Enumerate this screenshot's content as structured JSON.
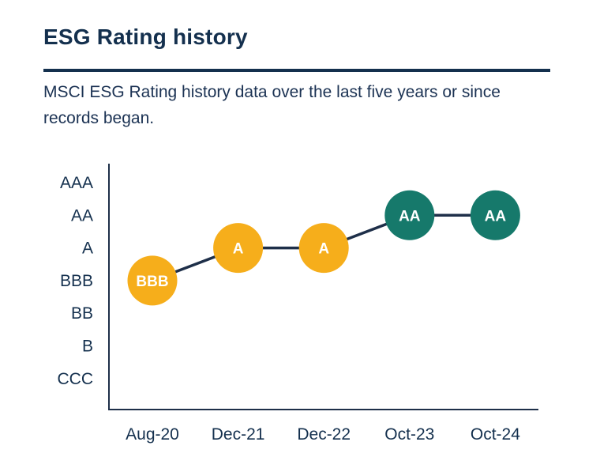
{
  "header": {
    "title": "ESG Rating history",
    "subtitle": "MSCI ESG Rating history data over the last five years or since records began."
  },
  "colors": {
    "heading_text": "#14304e",
    "body_text": "#1b3253",
    "axis_and_connector_line": "#1e2f49",
    "rating_yellow": "#f6ae1b",
    "rating_teal": "#16796b",
    "point_label_text": "#ffffff",
    "background": "#ffffff"
  },
  "chart_data": {
    "type": "line",
    "title": "ESG Rating history",
    "xlabel": "",
    "ylabel": "",
    "x": [
      "Aug-20",
      "Dec-21",
      "Dec-22",
      "Oct-23",
      "Oct-24"
    ],
    "y_levels_top_to_bottom": [
      "AAA",
      "AA",
      "A",
      "BBB",
      "BB",
      "B",
      "CCC"
    ],
    "series": [
      {
        "name": "MSCI ESG Rating",
        "values": [
          "BBB",
          "A",
          "A",
          "AA",
          "AA"
        ],
        "point_colors": [
          "#f6ae1b",
          "#f6ae1b",
          "#f6ae1b",
          "#16796b",
          "#16796b"
        ]
      }
    ],
    "marker_style": "labeled-circle",
    "grid": false,
    "legend": false
  }
}
